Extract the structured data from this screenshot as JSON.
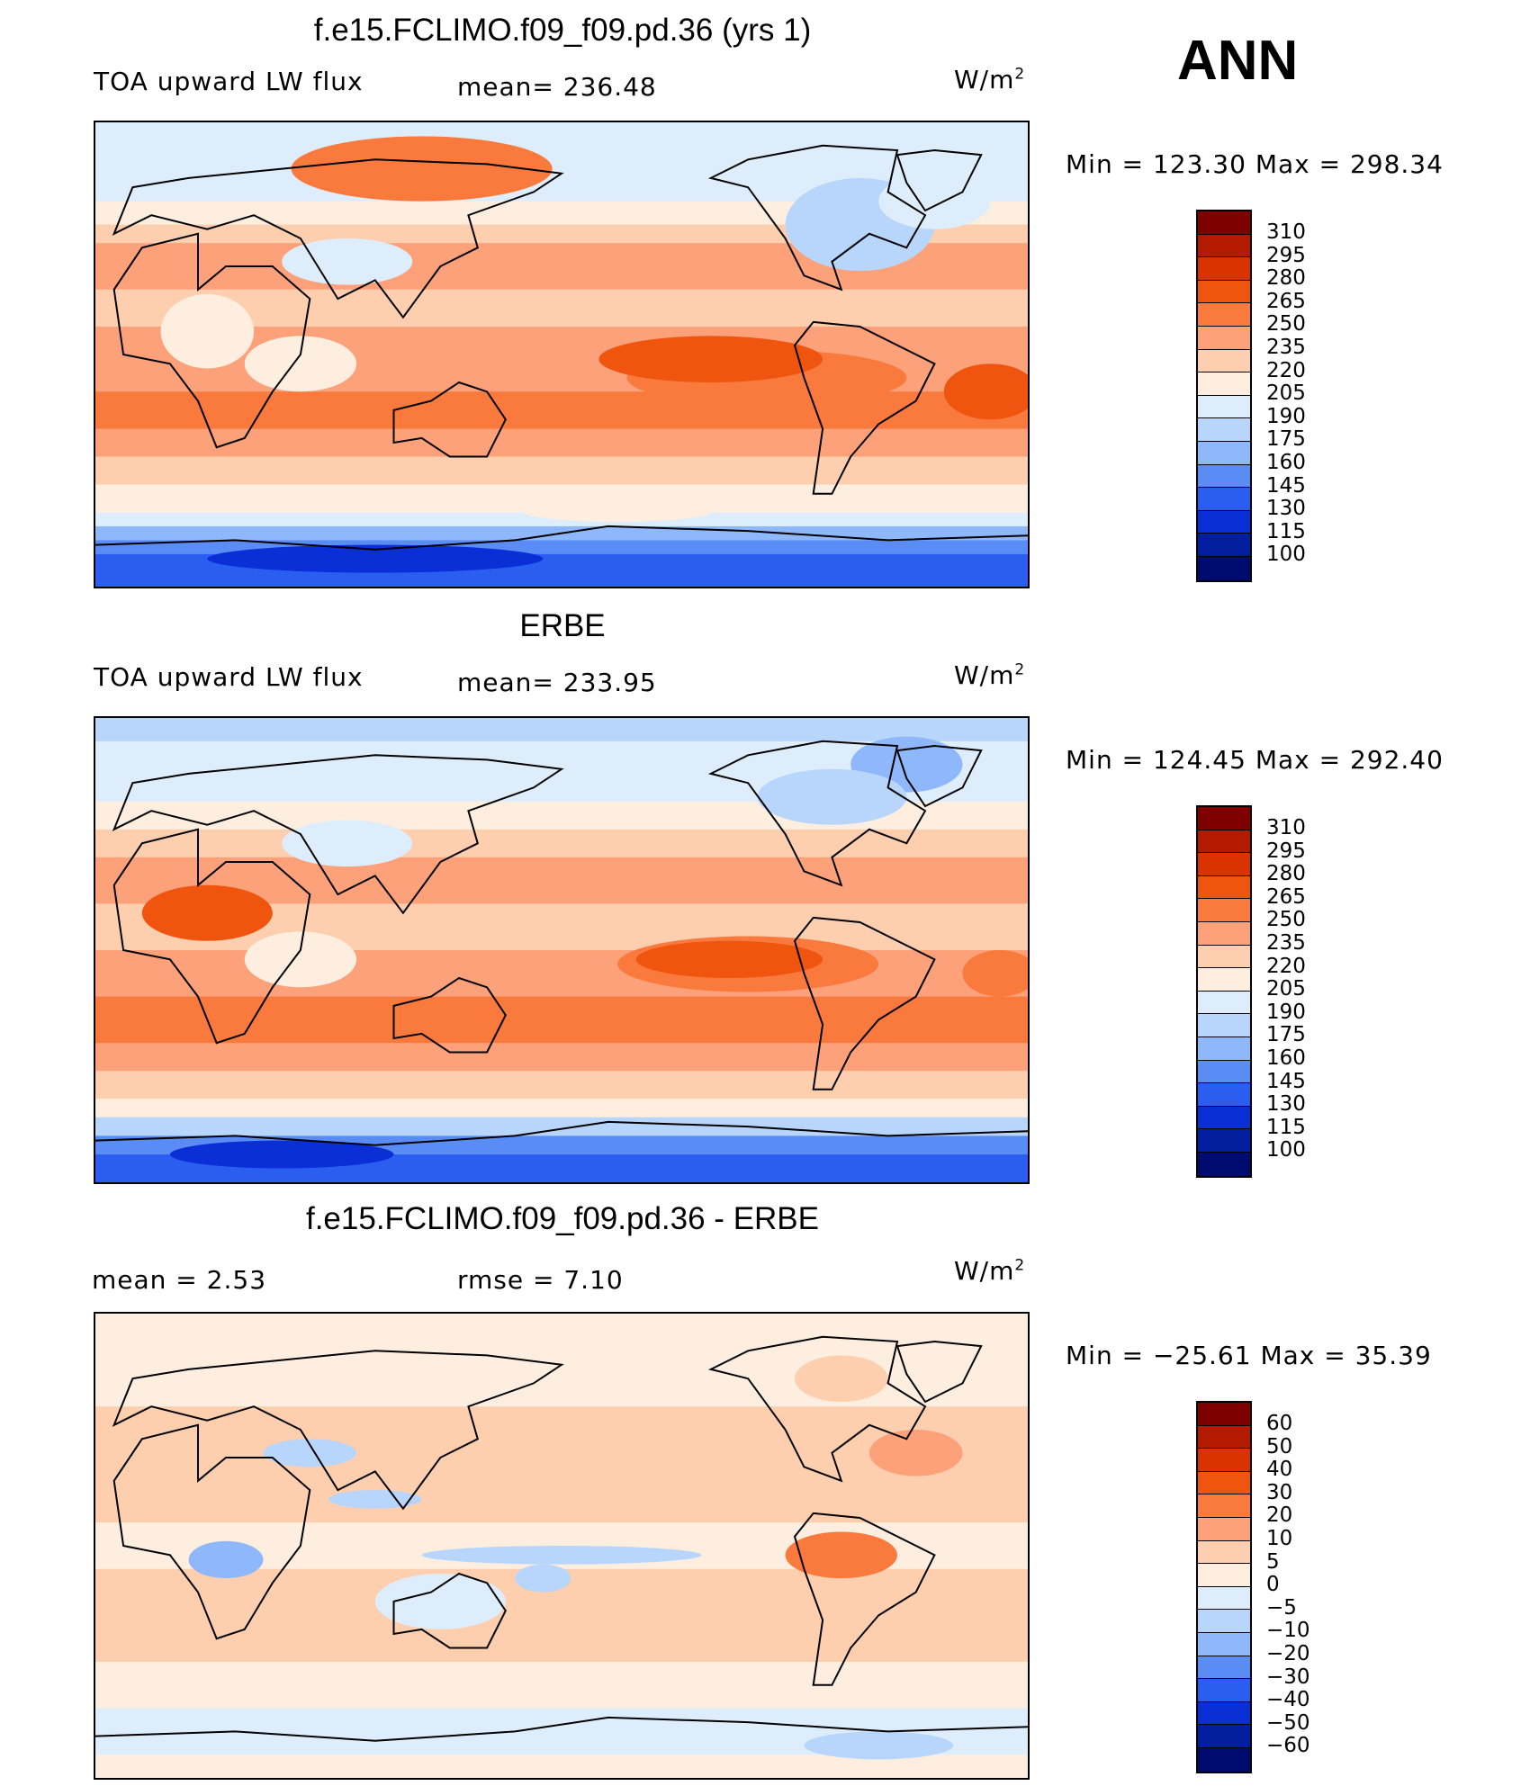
{
  "season": "ANN",
  "units": "W/m",
  "units_exponent": "2",
  "panels": [
    {
      "title": "f.e15.FCLIMO.f09_f09.pd.36 (yrs 1)",
      "variable": "TOA upward LW flux",
      "stat1": "mean=  236.48",
      "stat2": "",
      "minmax": "Min  =  123.30  Max  =  298.34",
      "levels": [
        "310",
        "295",
        "280",
        "265",
        "250",
        "235",
        "220",
        "205",
        "190",
        "175",
        "160",
        "145",
        "130",
        "115",
        "100"
      ],
      "map": "model"
    },
    {
      "title": "ERBE",
      "variable": "TOA upward LW flux",
      "stat1": "mean=  233.95",
      "stat2": "",
      "minmax": "Min  =  124.45  Max  =  292.40",
      "levels": [
        "310",
        "295",
        "280",
        "265",
        "250",
        "235",
        "220",
        "205",
        "190",
        "175",
        "160",
        "145",
        "130",
        "115",
        "100"
      ],
      "map": "obs"
    },
    {
      "title": "f.e15.FCLIMO.f09_f09.pd.36 - ERBE",
      "variable": "mean  =      2.53",
      "stat1": "rmse  =      7.10",
      "stat2": "",
      "minmax": "Min  =  −25.61  Max  =    35.39",
      "levels": [
        "60",
        "50",
        "40",
        "30",
        "20",
        "10",
        "5",
        "0",
        "−5",
        "−10",
        "−20",
        "−30",
        "−40",
        "−50",
        "−60"
      ],
      "map": "diff"
    }
  ],
  "colors": {
    "palette": [
      "#800000",
      "#b31a00",
      "#d93300",
      "#f0550f",
      "#f97a3c",
      "#fca17a",
      "#fdcfae",
      "#fdeee0",
      "#deedfc",
      "#b8d6fc",
      "#8fb7fb",
      "#5a8cf5",
      "#2a5ef0",
      "#0a2fd6",
      "#001e9e",
      "#000b70"
    ],
    "coast": "#000000"
  }
}
